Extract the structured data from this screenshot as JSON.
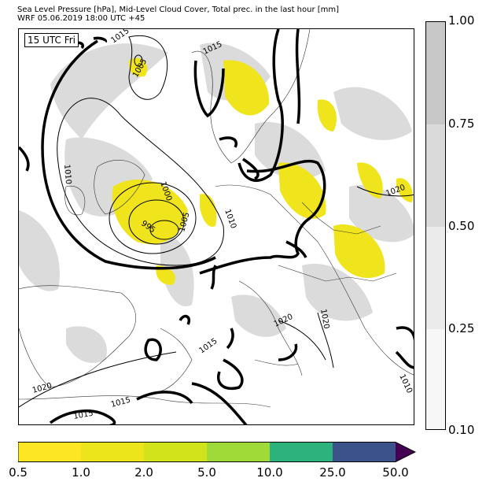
{
  "header": {
    "line1": "Sea Level Pressure [hPa], Mid-Level Cloud Cover, Total prec. in the last hour [mm]",
    "line2": "WRF 05.06.2019 18:00 UTC +45"
  },
  "map": {
    "time_label": "15 UTC Fri",
    "isobar_labels": [
      "1015",
      "1005",
      "1015",
      "1010",
      "1000",
      "1005",
      "995",
      "1010",
      "1020",
      "1020",
      "1020",
      "1015",
      "1020",
      "1015",
      "1015",
      "1010"
    ]
  },
  "cloud_colorbar": {
    "ticks": [
      "1.00",
      "0.75",
      "0.50",
      "0.25",
      "0.10"
    ],
    "colors": [
      "#c8c8c8",
      "#dadada",
      "#ebebeb",
      "#f7f7f7"
    ]
  },
  "precip_colorbar": {
    "ticks": [
      "0.5",
      "1.0",
      "2.0",
      "5.0",
      "10.0",
      "25.0",
      "50.0"
    ],
    "colors": [
      "#fde725",
      "#ece51c",
      "#d2e21b",
      "#a0da39",
      "#2db27d",
      "#3b528b",
      "#440154"
    ]
  }
}
